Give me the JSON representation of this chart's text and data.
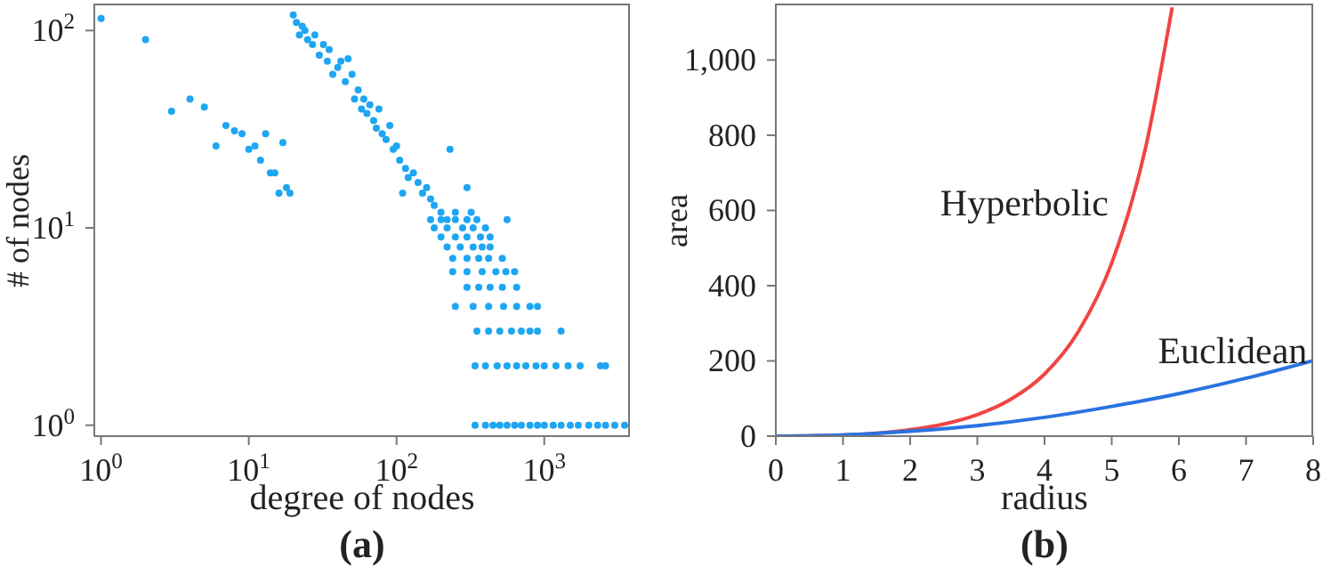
{
  "chart_data": [
    {
      "type": "scatter",
      "xlabel": "degree of nodes",
      "ylabel": "# of nodes",
      "log": "xy",
      "marker": "circle",
      "xlim": [
        0.9,
        3800
      ],
      "ylim": [
        0.88,
        137
      ],
      "xticks": [
        {
          "value": 1,
          "label": "10$^{0}$"
        },
        {
          "value": 10,
          "label": "10$^{1}$"
        },
        {
          "value": 100,
          "label": "10$^{2}$"
        },
        {
          "value": 1000,
          "label": "10$^{3}$"
        }
      ],
      "yticks": [
        {
          "value": 1,
          "label": "10$^{0}$"
        },
        {
          "value": 10,
          "label": "10$^{1}$"
        },
        {
          "value": 100,
          "label": "10$^{2}$"
        }
      ],
      "annotations": [
        "(a)"
      ],
      "series": [
        {
          "color": "#1ea6f2",
          "x": [
            1,
            2,
            3,
            4,
            5,
            6,
            7,
            8,
            9,
            10,
            11,
            12,
            13,
            14,
            15,
            16,
            17,
            18,
            19,
            20,
            21,
            22,
            23,
            24,
            25,
            27,
            28,
            30,
            32,
            34,
            35,
            37,
            40,
            42,
            45,
            47,
            50,
            52,
            55,
            58,
            60,
            63,
            66,
            70,
            73,
            76,
            80,
            85,
            90,
            95,
            100,
            105,
            110,
            115,
            120,
            130,
            140,
            150,
            160,
            170,
            180,
            200,
            220,
            230,
            250,
            300,
            320,
            170,
            200,
            250,
            300,
            350,
            560,
            180,
            220,
            280,
            330,
            400,
            200,
            250,
            300,
            370,
            430,
            220,
            270,
            330,
            380,
            430,
            240,
            300,
            360,
            420,
            520,
            240,
            300,
            380,
            470,
            550,
            630,
            300,
            360,
            430,
            520,
            650,
            250,
            330,
            420,
            530,
            650,
            800,
            900,
            350,
            420,
            500,
            600,
            700,
            800,
            900,
            1300,
            340,
            400,
            480,
            560,
            650,
            750,
            880,
            1000,
            1200,
            1450,
            1750,
            2400,
            2600,
            340,
            400,
            450,
            500,
            560,
            630,
            700,
            800,
            900,
            1000,
            1150,
            1300,
            1500,
            1700,
            2000,
            2300,
            2600,
            3000,
            3500
          ],
          "values": [
            115,
            90,
            39,
            45,
            41,
            26,
            33,
            31,
            30,
            25,
            26,
            22,
            30,
            19,
            19,
            15,
            27,
            16,
            15,
            120,
            110,
            95,
            105,
            100,
            90,
            85,
            95,
            75,
            85,
            70,
            80,
            60,
            65,
            70,
            55,
            72,
            60,
            45,
            50,
            40,
            45,
            38,
            42,
            35,
            32,
            40,
            30,
            28,
            33,
            25,
            26,
            22,
            15,
            20,
            18,
            19,
            17,
            15,
            16,
            14,
            13,
            12,
            11,
            25,
            12,
            16,
            12,
            11,
            11,
            11,
            11,
            11,
            11,
            10,
            10,
            10,
            10,
            10,
            9,
            9,
            9,
            9,
            9,
            8,
            8,
            8,
            8,
            8,
            7,
            7,
            7,
            7,
            7,
            6,
            6,
            6,
            6,
            6,
            6,
            5,
            5,
            5,
            5,
            5,
            4,
            4,
            4,
            4,
            4,
            4,
            4,
            3,
            3,
            3,
            3,
            3,
            3,
            3,
            3,
            2,
            2,
            2,
            2,
            2,
            2,
            2,
            2,
            2,
            2,
            2,
            2,
            2,
            1,
            1,
            1,
            1,
            1,
            1,
            1,
            1,
            1,
            1,
            1,
            1,
            1,
            1,
            1,
            1,
            1,
            1,
            1
          ]
        }
      ]
    },
    {
      "type": "line",
      "xlabel": "radius",
      "ylabel": "area",
      "marker": "none",
      "xlim": [
        0,
        8
      ],
      "ylim": [
        0,
        1150
      ],
      "xticks": [
        0,
        1,
        2,
        3,
        4,
        5,
        6,
        7,
        8
      ],
      "yticks": [
        0,
        200,
        400,
        600,
        800,
        {
          "value": 1000,
          "label": "1,000"
        }
      ],
      "annotations": [
        "(b)"
      ],
      "series": [
        {
          "name": "Hyperbolic",
          "color": "#f04444",
          "x": [
            0,
            1,
            2,
            2.5,
            3,
            3.5,
            4,
            4.5,
            5,
            5.5,
            5.9
          ],
          "values": [
            0,
            3,
            17,
            32,
            57,
            98,
            165,
            277,
            460,
            763,
            1140
          ]
        },
        {
          "name": "Euclidean",
          "color": "#2a72e0",
          "x": [
            0,
            1,
            2,
            3,
            4,
            5,
            6,
            7,
            8
          ],
          "values": [
            0,
            3,
            13,
            28,
            50,
            79,
            113,
            154,
            201
          ]
        }
      ]
    }
  ]
}
